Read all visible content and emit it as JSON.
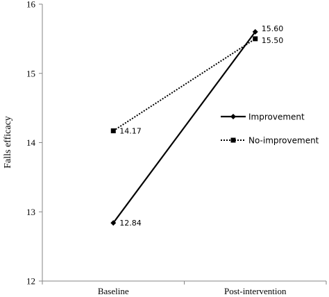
{
  "chart_data": {
    "type": "line",
    "categories": [
      "Baseline",
      "Post-intervention"
    ],
    "ylabel": "Falls efficacy",
    "ylim": [
      12,
      16
    ],
    "yticks": [
      12,
      13,
      14,
      15,
      16
    ],
    "grid": false,
    "legend_position": "right",
    "series": [
      {
        "name": "Improvement",
        "values": [
          12.84,
          15.6
        ],
        "labels": [
          "12.84",
          "15.60"
        ],
        "line_style": "solid",
        "marker": "diamond",
        "color": "#000000"
      },
      {
        "name": "No-improvement",
        "values": [
          14.17,
          15.5
        ],
        "labels": [
          "14.17",
          "15.50"
        ],
        "line_style": "dotted",
        "marker": "square",
        "color": "#000000"
      }
    ]
  }
}
